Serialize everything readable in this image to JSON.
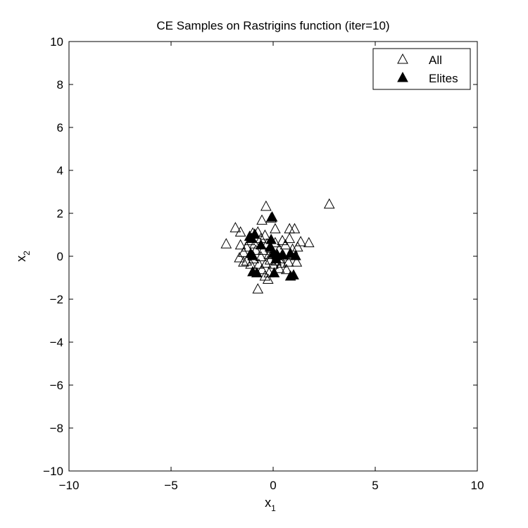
{
  "chart_data": {
    "type": "scatter",
    "title": "CE Samples on Rastrigins function (iter=10)",
    "xlabel": {
      "base": "x",
      "sub": "1"
    },
    "ylabel": {
      "base": "x",
      "sub": "2"
    },
    "xlim": [
      -10,
      10
    ],
    "ylim": [
      -10,
      10
    ],
    "xticks": [
      -10,
      -5,
      0,
      5,
      10
    ],
    "yticks": [
      -10,
      -8,
      -6,
      -4,
      -2,
      0,
      2,
      4,
      6,
      8,
      10
    ],
    "xtick_labels": [
      "−10",
      "−5",
      "0",
      "5",
      "10"
    ],
    "ytick_labels": [
      "−10",
      "−8",
      "−6",
      "−4",
      "−2",
      "0",
      "2",
      "4",
      "6",
      "8",
      "10"
    ],
    "grid": false,
    "legend_position": "top-right",
    "series": [
      {
        "name": "All",
        "marker": "triangle-open",
        "color": "#000000",
        "points": [
          [
            2.75,
            2.45
          ],
          [
            -0.35,
            2.35
          ],
          [
            -0.1,
            1.8
          ],
          [
            -1.85,
            1.35
          ],
          [
            -1.6,
            1.15
          ],
          [
            -1.0,
            1.1
          ],
          [
            0.8,
            1.3
          ],
          [
            1.05,
            1.3
          ],
          [
            -0.55,
            1.7
          ],
          [
            0.1,
            1.3
          ],
          [
            -0.75,
            1.15
          ],
          [
            -0.4,
            1.0
          ],
          [
            -2.3,
            0.6
          ],
          [
            -1.6,
            0.55
          ],
          [
            -1.3,
            0.45
          ],
          [
            -1.15,
            0.75
          ],
          [
            -0.9,
            0.6
          ],
          [
            -0.6,
            0.85
          ],
          [
            -0.3,
            0.6
          ],
          [
            0.1,
            0.65
          ],
          [
            0.45,
            0.75
          ],
          [
            0.8,
            0.85
          ],
          [
            0.6,
            0.55
          ],
          [
            1.35,
            0.7
          ],
          [
            1.75,
            0.65
          ],
          [
            1.2,
            0.45
          ],
          [
            0.95,
            0.35
          ],
          [
            0.3,
            0.35
          ],
          [
            -0.1,
            0.4
          ],
          [
            -0.5,
            0.3
          ],
          [
            -0.85,
            0.3
          ],
          [
            -1.45,
            0.2
          ],
          [
            -1.65,
            -0.05
          ],
          [
            -1.3,
            -0.2
          ],
          [
            -0.95,
            -0.1
          ],
          [
            -0.6,
            0.0
          ],
          [
            -0.2,
            0.1
          ],
          [
            0.2,
            0.1
          ],
          [
            0.5,
            0.05
          ],
          [
            0.85,
            0.1
          ],
          [
            1.15,
            -0.25
          ],
          [
            0.75,
            -0.25
          ],
          [
            0.4,
            -0.3
          ],
          [
            0.0,
            -0.35
          ],
          [
            -0.35,
            -0.3
          ],
          [
            -0.7,
            -0.35
          ],
          [
            -1.1,
            -0.35
          ],
          [
            -1.45,
            -0.25
          ],
          [
            -0.55,
            -0.6
          ],
          [
            -0.2,
            -0.75
          ],
          [
            0.3,
            -0.55
          ],
          [
            0.65,
            -0.6
          ],
          [
            -0.4,
            -0.9
          ],
          [
            -0.25,
            -1.05
          ],
          [
            -0.75,
            -1.5
          ],
          [
            0.15,
            -0.2
          ],
          [
            -0.05,
            0.15
          ],
          [
            0.35,
            -0.1
          ],
          [
            -0.15,
            -0.15
          ]
        ]
      },
      {
        "name": "Elites",
        "marker": "triangle-filled",
        "color": "#000000",
        "points": [
          [
            -0.05,
            1.85
          ],
          [
            -1.15,
            0.95
          ],
          [
            -0.9,
            1.05
          ],
          [
            -1.05,
            0.85
          ],
          [
            -0.1,
            0.8
          ],
          [
            -0.6,
            0.55
          ],
          [
            -0.15,
            0.45
          ],
          [
            -1.1,
            0.15
          ],
          [
            -1.0,
            0.05
          ],
          [
            0.0,
            0.15
          ],
          [
            0.2,
            0.05
          ],
          [
            0.45,
            0.1
          ],
          [
            0.85,
            0.15
          ],
          [
            1.1,
            0.05
          ],
          [
            0.15,
            -0.1
          ],
          [
            -1.0,
            -0.7
          ],
          [
            -0.8,
            -0.75
          ],
          [
            0.05,
            -0.75
          ],
          [
            0.85,
            -0.9
          ],
          [
            1.0,
            -0.85
          ]
        ]
      }
    ]
  }
}
